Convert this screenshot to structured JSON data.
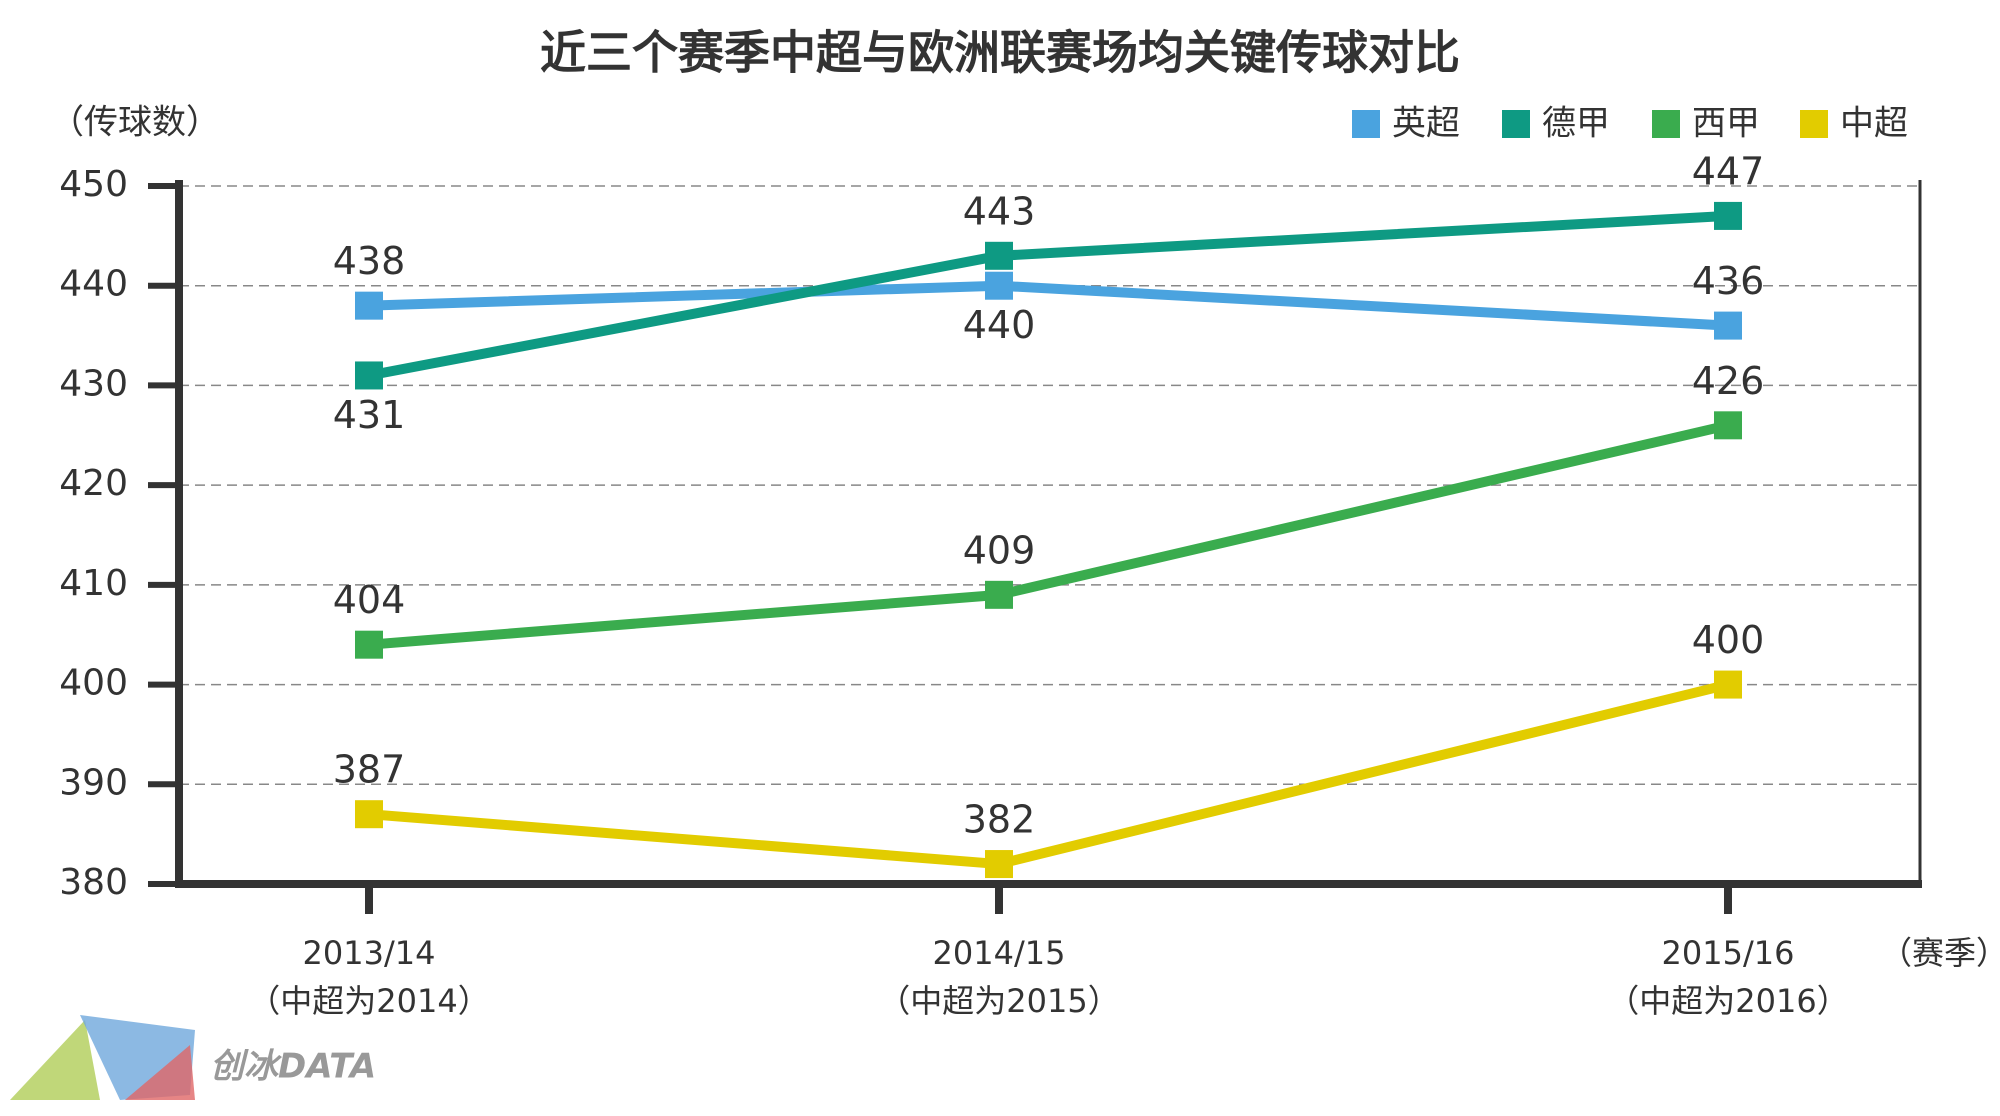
{
  "chart_data": {
    "type": "line",
    "title": "近三个赛季中超与欧洲联赛场均关键传球对比",
    "y_label": "（传球数）",
    "x_label": "（赛季）",
    "categories": [
      "2013/14",
      "2014/15",
      "2015/16"
    ],
    "category_notes": [
      "（中超为2014）",
      "（中超为2015）",
      "（中超为2016）"
    ],
    "series": [
      {
        "name": "英超",
        "color": "#4aa3df",
        "values": [
          438,
          440,
          436
        ]
      },
      {
        "name": "德甲",
        "color": "#0e9a83",
        "values": [
          431,
          443,
          447
        ]
      },
      {
        "name": "西甲",
        "color": "#3aac4e",
        "values": [
          404,
          409,
          426
        ]
      },
      {
        "name": "中超",
        "color": "#e2cc00",
        "values": [
          387,
          382,
          400
        ]
      }
    ],
    "ylim": [
      380,
      450
    ],
    "yticks": [
      380,
      390,
      400,
      410,
      420,
      430,
      440,
      450
    ],
    "grid": true,
    "legend": "top-right",
    "watermark": "创冰DATA"
  }
}
